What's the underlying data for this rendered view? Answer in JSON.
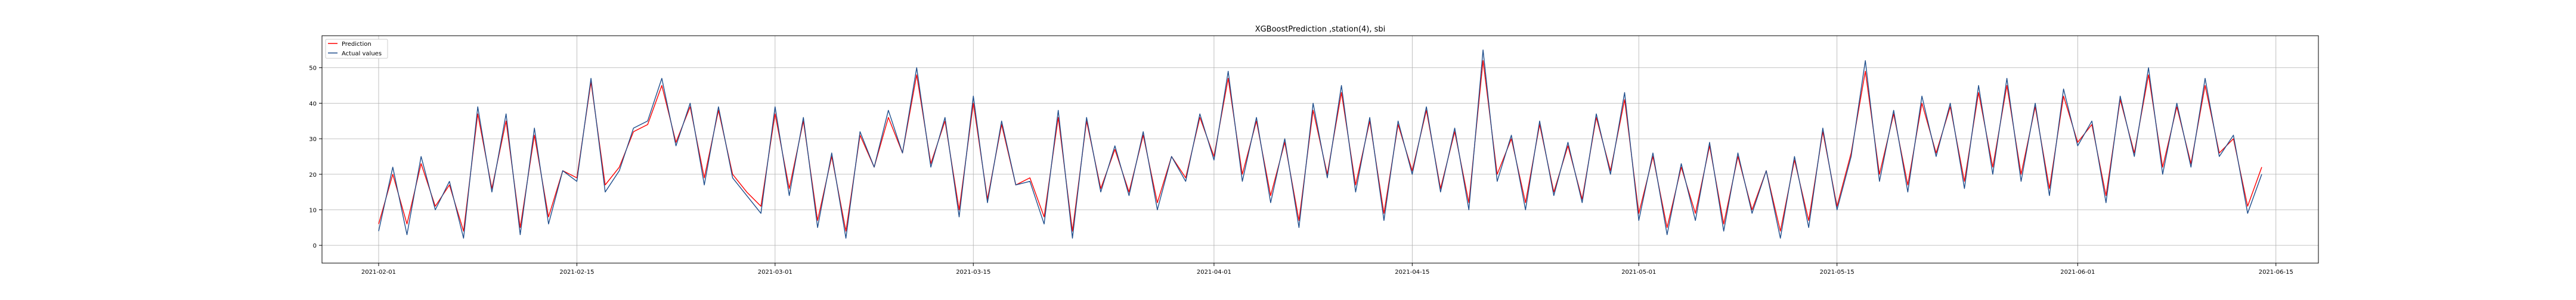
{
  "chart_data": {
    "type": "line",
    "title": "XGBoostPrediction ,station(4), sbi",
    "xlabel": "",
    "ylabel": "",
    "x_range": [
      "2021-01-28",
      "2021-06-18"
    ],
    "ylim": [
      -5,
      59
    ],
    "x_ticks": [
      "2021-02-01",
      "2021-02-15",
      "2021-03-01",
      "2021-03-15",
      "2021-04-01",
      "2021-04-15",
      "2021-05-01",
      "2021-05-15",
      "2021-06-01",
      "2021-06-15"
    ],
    "y_ticks": [
      0,
      10,
      20,
      30,
      40,
      50
    ],
    "grid": true,
    "legend_position": "top-left",
    "colors": {
      "Prediction": "#ff0000",
      "Actual values": "#1f4e8c"
    },
    "series": [
      {
        "name": "Actual values",
        "points": [
          [
            "2021-02-01",
            4
          ],
          [
            "2021-02-02",
            22
          ],
          [
            "2021-02-03",
            3
          ],
          [
            "2021-02-04",
            25
          ],
          [
            "2021-02-05",
            10
          ],
          [
            "2021-02-06",
            18
          ],
          [
            "2021-02-07",
            2
          ],
          [
            "2021-02-08",
            39
          ],
          [
            "2021-02-09",
            15
          ],
          [
            "2021-02-10",
            37
          ],
          [
            "2021-02-11",
            3
          ],
          [
            "2021-02-12",
            33
          ],
          [
            "2021-02-13",
            6
          ],
          [
            "2021-02-14",
            21
          ],
          [
            "2021-02-15",
            18
          ],
          [
            "2021-02-16",
            47
          ],
          [
            "2021-02-17",
            15
          ],
          [
            "2021-02-18",
            21
          ],
          [
            "2021-02-19",
            33
          ],
          [
            "2021-02-20",
            35
          ],
          [
            "2021-02-21",
            47
          ],
          [
            "2021-02-22",
            28
          ],
          [
            "2021-02-23",
            40
          ],
          [
            "2021-02-24",
            17
          ],
          [
            "2021-02-25",
            39
          ],
          [
            "2021-02-26",
            19
          ],
          [
            "2021-02-27",
            14
          ],
          [
            "2021-02-28",
            9
          ],
          [
            "2021-03-01",
            39
          ],
          [
            "2021-03-02",
            14
          ],
          [
            "2021-03-03",
            36
          ],
          [
            "2021-03-04",
            5
          ],
          [
            "2021-03-05",
            26
          ],
          [
            "2021-03-06",
            2
          ],
          [
            "2021-03-07",
            32
          ],
          [
            "2021-03-08",
            22
          ],
          [
            "2021-03-09",
            38
          ],
          [
            "2021-03-10",
            26
          ],
          [
            "2021-03-11",
            50
          ],
          [
            "2021-03-12",
            22
          ],
          [
            "2021-03-13",
            36
          ],
          [
            "2021-03-14",
            8
          ],
          [
            "2021-03-15",
            42
          ],
          [
            "2021-03-16",
            12
          ],
          [
            "2021-03-17",
            35
          ],
          [
            "2021-03-18",
            17
          ],
          [
            "2021-03-19",
            18
          ],
          [
            "2021-03-20",
            6
          ],
          [
            "2021-03-21",
            38
          ],
          [
            "2021-03-22",
            2
          ],
          [
            "2021-03-23",
            36
          ],
          [
            "2021-03-24",
            15
          ],
          [
            "2021-03-25",
            28
          ],
          [
            "2021-03-26",
            14
          ],
          [
            "2021-03-27",
            32
          ],
          [
            "2021-03-28",
            10
          ],
          [
            "2021-03-29",
            25
          ],
          [
            "2021-03-30",
            18
          ],
          [
            "2021-03-31",
            37
          ],
          [
            "2021-04-01",
            24
          ],
          [
            "2021-04-02",
            49
          ],
          [
            "2021-04-03",
            18
          ],
          [
            "2021-04-04",
            36
          ],
          [
            "2021-04-05",
            12
          ],
          [
            "2021-04-06",
            30
          ],
          [
            "2021-04-07",
            5
          ],
          [
            "2021-04-08",
            40
          ],
          [
            "2021-04-09",
            19
          ],
          [
            "2021-04-10",
            45
          ],
          [
            "2021-04-11",
            15
          ],
          [
            "2021-04-12",
            36
          ],
          [
            "2021-04-13",
            7
          ],
          [
            "2021-04-14",
            35
          ],
          [
            "2021-04-15",
            20
          ],
          [
            "2021-04-16",
            39
          ],
          [
            "2021-04-17",
            15
          ],
          [
            "2021-04-18",
            33
          ],
          [
            "2021-04-19",
            10
          ],
          [
            "2021-04-20",
            55
          ],
          [
            "2021-04-21",
            18
          ],
          [
            "2021-04-22",
            31
          ],
          [
            "2021-04-23",
            10
          ],
          [
            "2021-04-24",
            35
          ],
          [
            "2021-04-25",
            14
          ],
          [
            "2021-04-26",
            29
          ],
          [
            "2021-04-27",
            12
          ],
          [
            "2021-04-28",
            37
          ],
          [
            "2021-04-29",
            20
          ],
          [
            "2021-04-30",
            43
          ],
          [
            "2021-05-01",
            7
          ],
          [
            "2021-05-02",
            26
          ],
          [
            "2021-05-03",
            3
          ],
          [
            "2021-05-04",
            23
          ],
          [
            "2021-05-05",
            7
          ],
          [
            "2021-05-06",
            29
          ],
          [
            "2021-05-07",
            4
          ],
          [
            "2021-05-08",
            26
          ],
          [
            "2021-05-09",
            9
          ],
          [
            "2021-05-10",
            21
          ],
          [
            "2021-05-11",
            2
          ],
          [
            "2021-05-12",
            25
          ],
          [
            "2021-05-13",
            5
          ],
          [
            "2021-05-14",
            33
          ],
          [
            "2021-05-15",
            10
          ],
          [
            "2021-05-16",
            25
          ],
          [
            "2021-05-17",
            52
          ],
          [
            "2021-05-18",
            18
          ],
          [
            "2021-05-19",
            38
          ],
          [
            "2021-05-20",
            15
          ],
          [
            "2021-05-21",
            42
          ],
          [
            "2021-05-22",
            25
          ],
          [
            "2021-05-23",
            40
          ],
          [
            "2021-05-24",
            16
          ],
          [
            "2021-05-25",
            45
          ],
          [
            "2021-05-26",
            20
          ],
          [
            "2021-05-27",
            47
          ],
          [
            "2021-05-28",
            18
          ],
          [
            "2021-05-29",
            40
          ],
          [
            "2021-05-30",
            14
          ],
          [
            "2021-05-31",
            44
          ],
          [
            "2021-06-01",
            28
          ],
          [
            "2021-06-02",
            35
          ],
          [
            "2021-06-03",
            12
          ],
          [
            "2021-06-04",
            42
          ],
          [
            "2021-06-05",
            25
          ],
          [
            "2021-06-06",
            50
          ],
          [
            "2021-06-07",
            20
          ],
          [
            "2021-06-08",
            40
          ],
          [
            "2021-06-09",
            22
          ],
          [
            "2021-06-10",
            47
          ],
          [
            "2021-06-11",
            25
          ],
          [
            "2021-06-12",
            31
          ],
          [
            "2021-06-13",
            9
          ],
          [
            "2021-06-14",
            20
          ]
        ]
      },
      {
        "name": "Prediction",
        "points": [
          [
            "2021-02-01",
            6
          ],
          [
            "2021-02-02",
            20
          ],
          [
            "2021-02-03",
            6
          ],
          [
            "2021-02-04",
            23
          ],
          [
            "2021-02-05",
            11
          ],
          [
            "2021-02-06",
            17
          ],
          [
            "2021-02-07",
            4
          ],
          [
            "2021-02-08",
            37
          ],
          [
            "2021-02-09",
            16
          ],
          [
            "2021-02-10",
            35
          ],
          [
            "2021-02-11",
            5
          ],
          [
            "2021-02-12",
            31
          ],
          [
            "2021-02-13",
            8
          ],
          [
            "2021-02-14",
            21
          ],
          [
            "2021-02-15",
            19
          ],
          [
            "2021-02-16",
            46
          ],
          [
            "2021-02-17",
            17
          ],
          [
            "2021-02-18",
            22
          ],
          [
            "2021-02-19",
            32
          ],
          [
            "2021-02-20",
            34
          ],
          [
            "2021-02-21",
            45
          ],
          [
            "2021-02-22",
            29
          ],
          [
            "2021-02-23",
            39
          ],
          [
            "2021-02-24",
            19
          ],
          [
            "2021-02-25",
            38
          ],
          [
            "2021-02-26",
            20
          ],
          [
            "2021-02-27",
            15
          ],
          [
            "2021-02-28",
            11
          ],
          [
            "2021-03-01",
            37
          ],
          [
            "2021-03-02",
            16
          ],
          [
            "2021-03-03",
            35
          ],
          [
            "2021-03-04",
            7
          ],
          [
            "2021-03-05",
            25
          ],
          [
            "2021-03-06",
            4
          ],
          [
            "2021-03-07",
            31
          ],
          [
            "2021-03-08",
            22
          ],
          [
            "2021-03-09",
            36
          ],
          [
            "2021-03-10",
            26
          ],
          [
            "2021-03-11",
            48
          ],
          [
            "2021-03-12",
            23
          ],
          [
            "2021-03-13",
            35
          ],
          [
            "2021-03-14",
            10
          ],
          [
            "2021-03-15",
            40
          ],
          [
            "2021-03-16",
            13
          ],
          [
            "2021-03-17",
            34
          ],
          [
            "2021-03-18",
            17
          ],
          [
            "2021-03-19",
            19
          ],
          [
            "2021-03-20",
            8
          ],
          [
            "2021-03-21",
            36
          ],
          [
            "2021-03-22",
            4
          ],
          [
            "2021-03-23",
            35
          ],
          [
            "2021-03-24",
            16
          ],
          [
            "2021-03-25",
            27
          ],
          [
            "2021-03-26",
            15
          ],
          [
            "2021-03-27",
            31
          ],
          [
            "2021-03-28",
            12
          ],
          [
            "2021-03-29",
            25
          ],
          [
            "2021-03-30",
            19
          ],
          [
            "2021-03-31",
            36
          ],
          [
            "2021-04-01",
            25
          ],
          [
            "2021-04-02",
            47
          ],
          [
            "2021-04-03",
            20
          ],
          [
            "2021-04-04",
            35
          ],
          [
            "2021-04-05",
            14
          ],
          [
            "2021-04-06",
            29
          ],
          [
            "2021-04-07",
            7
          ],
          [
            "2021-04-08",
            38
          ],
          [
            "2021-04-09",
            20
          ],
          [
            "2021-04-10",
            43
          ],
          [
            "2021-04-11",
            17
          ],
          [
            "2021-04-12",
            35
          ],
          [
            "2021-04-13",
            9
          ],
          [
            "2021-04-14",
            34
          ],
          [
            "2021-04-15",
            21
          ],
          [
            "2021-04-16",
            38
          ],
          [
            "2021-04-17",
            16
          ],
          [
            "2021-04-18",
            32
          ],
          [
            "2021-04-19",
            12
          ],
          [
            "2021-04-20",
            52
          ],
          [
            "2021-04-21",
            20
          ],
          [
            "2021-04-22",
            30
          ],
          [
            "2021-04-23",
            12
          ],
          [
            "2021-04-24",
            34
          ],
          [
            "2021-04-25",
            15
          ],
          [
            "2021-04-26",
            28
          ],
          [
            "2021-04-27",
            13
          ],
          [
            "2021-04-28",
            36
          ],
          [
            "2021-04-29",
            21
          ],
          [
            "2021-04-30",
            41
          ],
          [
            "2021-05-01",
            9
          ],
          [
            "2021-05-02",
            25
          ],
          [
            "2021-05-03",
            5
          ],
          [
            "2021-05-04",
            22
          ],
          [
            "2021-05-05",
            9
          ],
          [
            "2021-05-06",
            28
          ],
          [
            "2021-05-07",
            6
          ],
          [
            "2021-05-08",
            25
          ],
          [
            "2021-05-09",
            10
          ],
          [
            "2021-05-10",
            21
          ],
          [
            "2021-05-11",
            4
          ],
          [
            "2021-05-12",
            24
          ],
          [
            "2021-05-13",
            7
          ],
          [
            "2021-05-14",
            32
          ],
          [
            "2021-05-15",
            11
          ],
          [
            "2021-05-16",
            26
          ],
          [
            "2021-05-17",
            49
          ],
          [
            "2021-05-18",
            20
          ],
          [
            "2021-05-19",
            37
          ],
          [
            "2021-05-20",
            17
          ],
          [
            "2021-05-21",
            40
          ],
          [
            "2021-05-22",
            26
          ],
          [
            "2021-05-23",
            39
          ],
          [
            "2021-05-24",
            18
          ],
          [
            "2021-05-25",
            43
          ],
          [
            "2021-05-26",
            22
          ],
          [
            "2021-05-27",
            45
          ],
          [
            "2021-05-28",
            20
          ],
          [
            "2021-05-29",
            39
          ],
          [
            "2021-05-30",
            16
          ],
          [
            "2021-05-31",
            42
          ],
          [
            "2021-06-01",
            29
          ],
          [
            "2021-06-02",
            34
          ],
          [
            "2021-06-03",
            14
          ],
          [
            "2021-06-04",
            41
          ],
          [
            "2021-06-05",
            26
          ],
          [
            "2021-06-06",
            48
          ],
          [
            "2021-06-07",
            22
          ],
          [
            "2021-06-08",
            39
          ],
          [
            "2021-06-09",
            23
          ],
          [
            "2021-06-10",
            45
          ],
          [
            "2021-06-11",
            26
          ],
          [
            "2021-06-12",
            30
          ],
          [
            "2021-06-13",
            11
          ],
          [
            "2021-06-14",
            22
          ]
        ]
      }
    ]
  }
}
